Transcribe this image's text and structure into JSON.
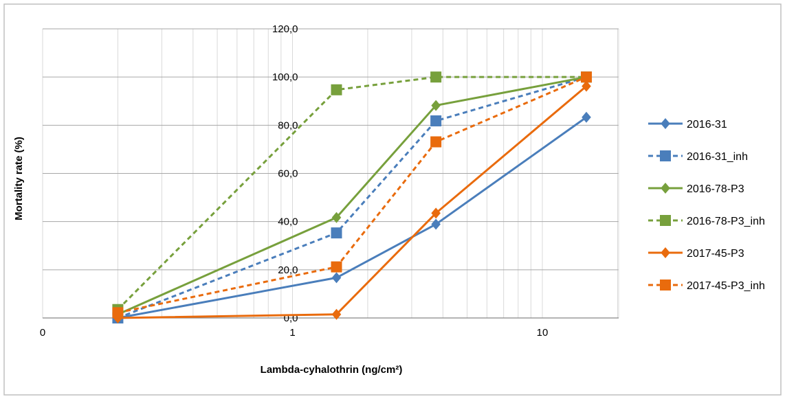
{
  "chart_data": {
    "type": "line",
    "xscale": "log",
    "xlabel": "Lambda-cyhalothrin (ng/cm²)",
    "ylabel": "Mortality rate (%)",
    "ylim": [
      0,
      120
    ],
    "xlim": [
      0.1,
      20
    ],
    "grid": true,
    "legend": "right",
    "x_ticks": [
      {
        "value": 0.1,
        "label": "0"
      },
      {
        "value": 1,
        "label": "1"
      },
      {
        "value": 10,
        "label": "10"
      }
    ],
    "y_ticks": [
      {
        "value": 0,
        "label": "0,0"
      },
      {
        "value": 20,
        "label": "20,0"
      },
      {
        "value": 40,
        "label": "40,0"
      },
      {
        "value": 60,
        "label": "60,0"
      },
      {
        "value": 80,
        "label": "80,0"
      },
      {
        "value": 100,
        "label": "100,0"
      },
      {
        "value": 120,
        "label": "120,0"
      }
    ],
    "series": [
      {
        "name": "2016-31",
        "color": "#4a7ebb",
        "dashed": false,
        "marker": "diamond",
        "points": [
          [
            0.2,
            0
          ],
          [
            1.5,
            16.7
          ],
          [
            3.75,
            38.9
          ],
          [
            15,
            83.3
          ]
        ]
      },
      {
        "name": "2016-31_inh",
        "color": "#4a7ebb",
        "dashed": true,
        "marker": "square",
        "points": [
          [
            0.2,
            0
          ],
          [
            1.5,
            35.3
          ],
          [
            3.75,
            81.8
          ],
          [
            15,
            100
          ]
        ]
      },
      {
        "name": "2016-78-P3",
        "color": "#77a03c",
        "dashed": false,
        "marker": "diamond",
        "points": [
          [
            0.2,
            1.5
          ],
          [
            1.5,
            41.7
          ],
          [
            3.75,
            88.2
          ],
          [
            15,
            100
          ]
        ]
      },
      {
        "name": "2016-78-P3_inh",
        "color": "#77a03c",
        "dashed": true,
        "marker": "square",
        "points": [
          [
            0.2,
            3.5
          ],
          [
            1.5,
            94.7
          ],
          [
            3.75,
            100
          ],
          [
            15,
            100
          ]
        ]
      },
      {
        "name": "2017-45-P3",
        "color": "#e96b0d",
        "dashed": false,
        "marker": "diamond",
        "points": [
          [
            0.2,
            0
          ],
          [
            1.5,
            1.5
          ],
          [
            3.75,
            43.5
          ],
          [
            15,
            96.2
          ]
        ]
      },
      {
        "name": "2017-45-P3_inh",
        "color": "#e96b0d",
        "dashed": true,
        "marker": "square",
        "points": [
          [
            0.2,
            2.2
          ],
          [
            1.5,
            21.2
          ],
          [
            3.75,
            73.1
          ],
          [
            15,
            100
          ]
        ]
      }
    ]
  }
}
